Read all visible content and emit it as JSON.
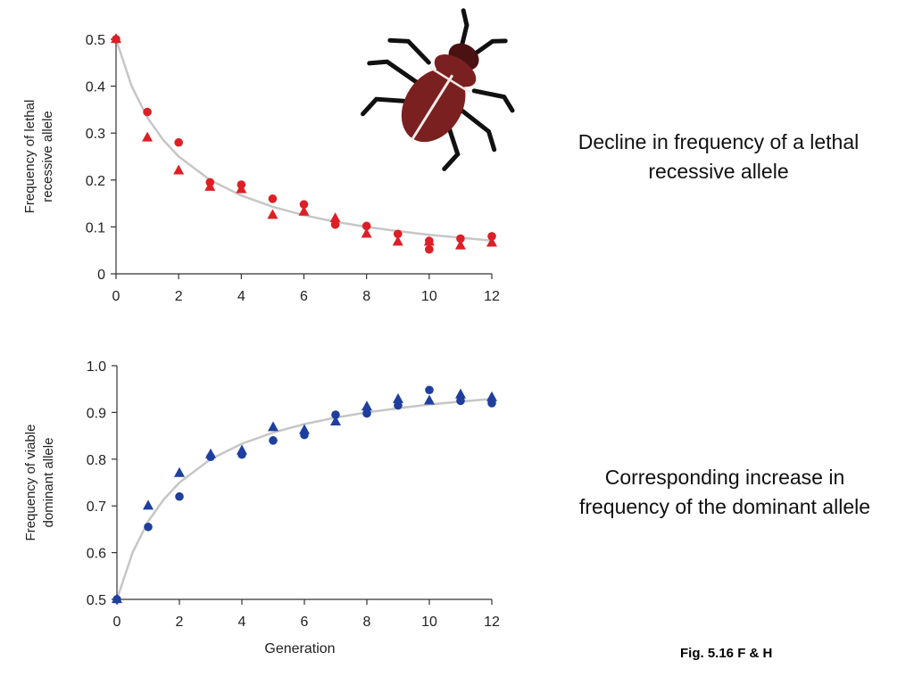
{
  "captions": {
    "top": "Decline in frequency of a lethal recessive allele",
    "bottom": "Corresponding increase in frequency of the dominant allele",
    "figure": "Fig. 5.16 F & H"
  },
  "illustration": {
    "icon": "beetle-icon",
    "body_color": "#7a2020",
    "leg_color": "#111111"
  },
  "colors": {
    "top_series": "#dd1f26",
    "bottom_series": "#1e3f9e",
    "curve": "#c6c6c6",
    "axis": "#333333"
  },
  "chart_data": [
    {
      "type": "scatter",
      "title": "",
      "xlabel": "",
      "ylabel_lines": [
        "Frequency of lethal",
        "recessive allele"
      ],
      "xlim": [
        0,
        12
      ],
      "ylim": [
        0,
        0.5
      ],
      "xticks": [
        0,
        2,
        4,
        6,
        8,
        10,
        12
      ],
      "xtick_labels": [
        "0",
        "2",
        "4",
        "6",
        "8",
        "10",
        "12"
      ],
      "yticks": [
        0,
        0.1,
        0.2,
        0.3,
        0.4,
        0.5
      ],
      "ytick_labels": [
        "0",
        "0.1",
        "0.2",
        "0.3",
        "0.4",
        "0.5"
      ],
      "series": [
        {
          "name": "circles",
          "marker": "circle",
          "x": [
            0,
            1,
            2,
            3,
            4,
            5,
            6,
            7,
            8,
            9,
            10,
            10,
            11,
            12
          ],
          "y": [
            0.5,
            0.345,
            0.28,
            0.195,
            0.19,
            0.16,
            0.148,
            0.105,
            0.102,
            0.085,
            0.07,
            0.052,
            0.075,
            0.08
          ]
        },
        {
          "name": "triangles",
          "marker": "triangle",
          "x": [
            0,
            1,
            2,
            3,
            4,
            5,
            6,
            7,
            8,
            9,
            10,
            11,
            12
          ],
          "y": [
            0.5,
            0.29,
            0.22,
            0.185,
            0.18,
            0.125,
            0.132,
            0.118,
            0.085,
            0.068,
            0.068,
            0.06,
            0.066
          ]
        }
      ],
      "curve": {
        "type": "theory",
        "formula": "q0/(1+n*q0)",
        "x": [
          0,
          0.5,
          1,
          1.5,
          2,
          3,
          4,
          5,
          6,
          7,
          8,
          9,
          10,
          11,
          12
        ],
        "y": [
          0.5,
          0.4,
          0.333,
          0.286,
          0.25,
          0.2,
          0.167,
          0.143,
          0.125,
          0.111,
          0.1,
          0.091,
          0.083,
          0.077,
          0.071
        ]
      }
    },
    {
      "type": "scatter",
      "title": "",
      "xlabel": "Generation",
      "ylabel_lines": [
        "Frequency of viable",
        "dominant allele"
      ],
      "xlim": [
        0,
        12
      ],
      "ylim": [
        0.5,
        1.0
      ],
      "xticks": [
        0,
        2,
        4,
        6,
        8,
        10,
        12
      ],
      "xtick_labels": [
        "0",
        "2",
        "4",
        "6",
        "8",
        "10",
        "12"
      ],
      "yticks": [
        0.5,
        0.6,
        0.7,
        0.8,
        0.9,
        1.0
      ],
      "ytick_labels": [
        "0.5",
        "0.6",
        "0.7",
        "0.8",
        "0.9",
        "1.0"
      ],
      "series": [
        {
          "name": "circles",
          "marker": "circle",
          "x": [
            0,
            1,
            2,
            3,
            4,
            5,
            6,
            7,
            8,
            9,
            10,
            11,
            12
          ],
          "y": [
            0.5,
            0.655,
            0.72,
            0.805,
            0.81,
            0.84,
            0.852,
            0.895,
            0.898,
            0.915,
            0.948,
            0.925,
            0.92
          ]
        },
        {
          "name": "triangles",
          "marker": "triangle",
          "x": [
            0,
            1,
            2,
            3,
            4,
            5,
            6,
            7,
            8,
            9,
            10,
            11,
            12
          ],
          "y": [
            0.5,
            0.7,
            0.77,
            0.81,
            0.818,
            0.868,
            0.862,
            0.88,
            0.912,
            0.928,
            0.925,
            0.938,
            0.932
          ]
        }
      ],
      "curve": {
        "type": "theory",
        "formula": "1 - q0/(1+n*q0)",
        "x": [
          0,
          0.5,
          1,
          1.5,
          2,
          3,
          4,
          5,
          6,
          7,
          8,
          9,
          10,
          11,
          12
        ],
        "y": [
          0.5,
          0.6,
          0.667,
          0.714,
          0.75,
          0.8,
          0.833,
          0.857,
          0.875,
          0.889,
          0.9,
          0.909,
          0.917,
          0.923,
          0.929
        ]
      }
    }
  ]
}
